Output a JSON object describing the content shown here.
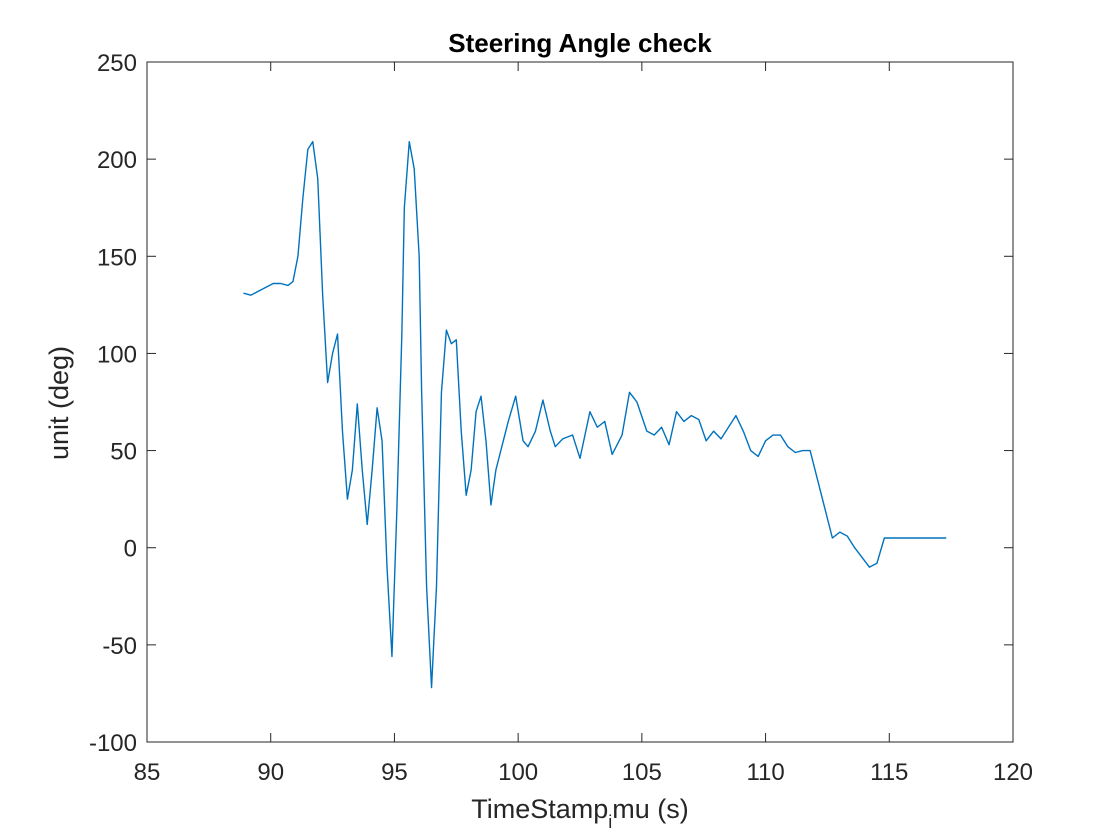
{
  "chart_data": {
    "type": "line",
    "title": "Steering Angle check",
    "xlabel_main": "TimeStamp",
    "xlabel_sub": "i",
    "xlabel_rest": "mu (s)",
    "ylabel": "unit (deg)",
    "xlim": [
      85,
      120
    ],
    "ylim": [
      -100,
      250
    ],
    "xticks": [
      85,
      90,
      95,
      100,
      105,
      110,
      115,
      120
    ],
    "yticks": [
      -100,
      -50,
      0,
      50,
      100,
      150,
      200,
      250
    ],
    "grid": false,
    "line_color": "#0072BD",
    "series": [
      {
        "x": [
          88.9,
          89.2,
          89.5,
          89.8,
          90.1,
          90.4,
          90.7,
          90.9,
          91.1,
          91.3,
          91.5,
          91.7,
          91.9,
          92.1,
          92.3,
          92.5,
          92.7,
          92.9,
          93.1,
          93.3,
          93.5,
          93.7,
          93.9,
          94.1,
          94.3,
          94.5,
          94.7,
          94.9,
          95.1,
          95.3,
          95.4,
          95.6,
          95.8,
          96.0,
          96.1,
          96.3,
          96.5,
          96.7,
          96.9,
          97.1,
          97.3,
          97.5,
          97.7,
          97.9,
          98.1,
          98.3,
          98.5,
          98.7,
          98.9,
          99.1,
          99.3,
          99.6,
          99.9,
          100.2,
          100.4,
          100.7,
          101.0,
          101.3,
          101.5,
          101.8,
          102.2,
          102.5,
          102.9,
          103.2,
          103.5,
          103.8,
          104.2,
          104.5,
          104.8,
          105.2,
          105.5,
          105.8,
          106.1,
          106.4,
          106.7,
          107.0,
          107.3,
          107.6,
          107.9,
          108.2,
          108.5,
          108.8,
          109.1,
          109.4,
          109.7,
          110.0,
          110.3,
          110.6,
          110.9,
          111.2,
          111.5,
          111.8,
          112.1,
          112.4,
          112.7,
          113.0,
          113.3,
          113.6,
          113.9,
          114.2,
          114.5,
          114.8,
          115.1,
          115.4,
          115.7,
          115.9,
          116.1,
          116.3,
          116.5,
          116.7,
          116.9,
          117.1,
          117.3
        ],
        "y": [
          131,
          130,
          132,
          134,
          136,
          136,
          135,
          137,
          150,
          180,
          205,
          209,
          190,
          130,
          85,
          100,
          110,
          60,
          25,
          40,
          74,
          40,
          12,
          40,
          72,
          55,
          -10,
          -56,
          20,
          110,
          175,
          209,
          195,
          150,
          80,
          -20,
          -72,
          -20,
          80,
          112,
          105,
          107,
          60,
          27,
          40,
          70,
          78,
          55,
          22,
          40,
          50,
          65,
          78,
          55,
          52,
          60,
          76,
          60,
          52,
          56,
          58,
          46,
          70,
          62,
          65,
          48,
          58,
          80,
          75,
          60,
          58,
          62,
          53,
          70,
          65,
          68,
          66,
          55,
          60,
          56,
          62,
          68,
          60,
          50,
          47,
          55,
          58,
          58,
          52,
          49,
          50,
          50,
          35,
          20,
          5,
          8,
          6,
          0,
          -5,
          -10,
          -8,
          5,
          5,
          5,
          5,
          5,
          5,
          5,
          5,
          5,
          5,
          5,
          5
        ]
      }
    ]
  }
}
